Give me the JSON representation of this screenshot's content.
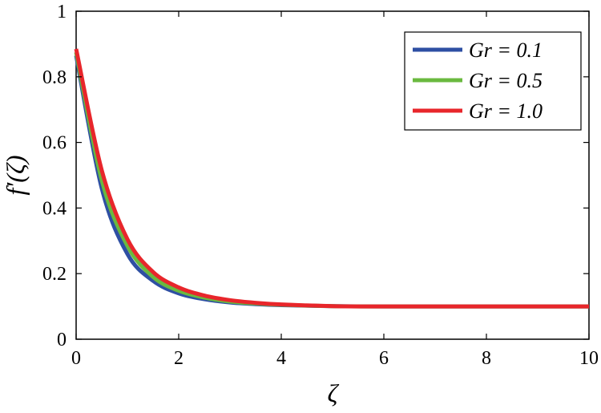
{
  "chart_data": {
    "type": "line",
    "title": "",
    "xlabel": "ζ",
    "ylabel": "f′(ζ)",
    "xlim": [
      0,
      10
    ],
    "ylim": [
      0,
      1
    ],
    "x_ticks": [
      0,
      2,
      4,
      6,
      8,
      10
    ],
    "y_ticks": [
      0,
      0.2,
      0.4,
      0.6,
      0.8,
      1
    ],
    "x_tick_labels": [
      "0",
      "2",
      "4",
      "6",
      "8",
      "10"
    ],
    "y_tick_labels": [
      "0",
      "0.2",
      "0.4",
      "0.6",
      "0.8",
      "1"
    ],
    "grid": false,
    "legend_position": "top-right",
    "x": [
      0,
      0.5,
      1,
      1.5,
      2,
      2.5,
      3,
      3.5,
      4,
      5,
      6,
      7,
      8,
      9,
      10
    ],
    "series": [
      {
        "name": "Gr = 0.1",
        "color": "#2e4fa3",
        "values": [
          0.865,
          0.46,
          0.26,
          0.178,
          0.14,
          0.122,
          0.112,
          0.107,
          0.104,
          0.101,
          0.1,
          0.1,
          0.1,
          0.1,
          0.1
        ]
      },
      {
        "name": "Gr = 0.5",
        "color": "#6ab93f",
        "values": [
          0.875,
          0.485,
          0.285,
          0.19,
          0.148,
          0.127,
          0.115,
          0.109,
          0.105,
          0.101,
          0.1,
          0.1,
          0.1,
          0.1,
          0.1
        ]
      },
      {
        "name": "Gr = 1.0",
        "color": "#e8262b",
        "values": [
          0.885,
          0.515,
          0.305,
          0.205,
          0.158,
          0.133,
          0.119,
          0.111,
          0.106,
          0.101,
          0.1,
          0.1,
          0.1,
          0.1,
          0.1
        ]
      }
    ]
  }
}
